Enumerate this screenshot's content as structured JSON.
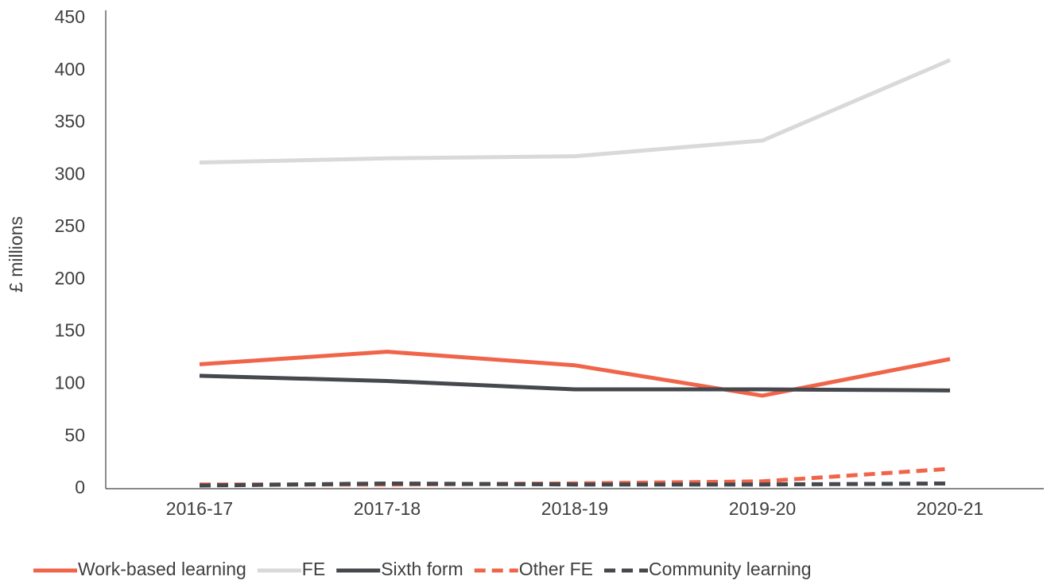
{
  "chart_data": {
    "type": "line",
    "y_label": "£ millions",
    "categories": [
      "2016-17",
      "2017-18",
      "2018-19",
      "2019-20",
      "2020-21"
    ],
    "series": [
      {
        "name": "Work-based learning",
        "color": "#f0654a",
        "dash": false,
        "values": [
          119,
          131,
          118,
          89,
          124
        ]
      },
      {
        "name": "FE",
        "color": "#d9d9d9",
        "dash": false,
        "values": [
          312,
          316,
          318,
          333,
          410
        ]
      },
      {
        "name": "Sixth form",
        "color": "#45484d",
        "dash": false,
        "values": [
          108,
          103,
          95,
          95,
          94
        ]
      },
      {
        "name": "Other FE",
        "color": "#f0654a",
        "dash": true,
        "values": [
          4,
          4,
          5,
          7,
          19
        ]
      },
      {
        "name": "Community learning",
        "color": "#45484d",
        "dash": true,
        "values": [
          3,
          5,
          4,
          4,
          5
        ]
      }
    ],
    "ylim": [
      0,
      450
    ],
    "yticks": [
      0,
      50,
      100,
      150,
      200,
      250,
      300,
      350,
      400,
      450
    ],
    "grid": false
  }
}
